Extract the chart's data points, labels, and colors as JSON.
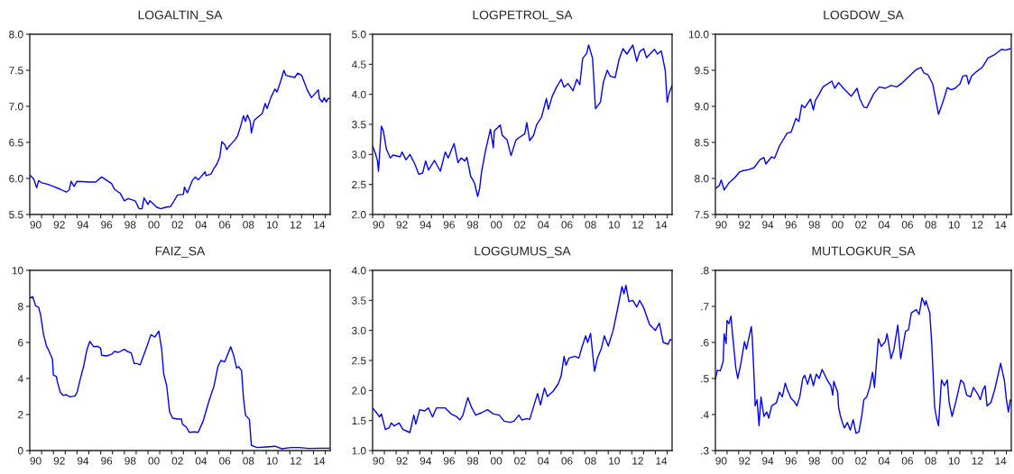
{
  "chart_data": [
    {
      "type": "line",
      "title": "LOGALTIN_SA",
      "xlim": [
        "1990-01",
        "2015-06"
      ],
      "ylim": [
        5.5,
        8.0
      ],
      "yticks": [
        {
          "value": 5.5,
          "label": "5.5"
        },
        {
          "value": 6,
          "label": "6.0"
        },
        {
          "value": 6.5,
          "label": "6.5"
        },
        {
          "value": 7,
          "label": "7.0"
        },
        {
          "value": 7.5,
          "label": "7.5"
        },
        {
          "value": 8,
          "label": "8.0"
        }
      ],
      "xticks": [
        {
          "value": "1990",
          "label": null
        },
        {
          "value": "1991",
          "label": null
        },
        {
          "value": "1992",
          "label": null
        },
        {
          "value": "1993",
          "label": null
        },
        {
          "value": "1994",
          "label": null
        },
        {
          "value": "1995",
          "label": null
        },
        {
          "value": "1996",
          "label": null
        },
        {
          "value": "1997",
          "label": null
        },
        {
          "value": "1998",
          "label": null
        },
        {
          "value": "1999",
          "label": null
        },
        {
          "value": "2000",
          "label": null
        },
        {
          "value": "2001",
          "label": null
        },
        {
          "value": "2002",
          "label": null
        },
        {
          "value": "2003",
          "label": null
        },
        {
          "value": "2004",
          "label": null
        },
        {
          "value": "2005",
          "label": null
        },
        {
          "value": "2006",
          "label": null
        },
        {
          "value": "2007",
          "label": null
        },
        {
          "value": "2008",
          "label": null
        },
        {
          "value": "2009",
          "label": null
        },
        {
          "value": "2010",
          "label": null
        },
        {
          "value": "2011",
          "label": null
        },
        {
          "value": "2012",
          "label": null
        },
        {
          "value": "2013",
          "label": null
        },
        {
          "value": "2014",
          "label": null
        },
        {
          "value": "2015",
          "label": null
        },
        {
          "value": "1990-07",
          "label": "90"
        },
        {
          "value": "1992-07",
          "label": "92"
        },
        {
          "value": "1994-07",
          "label": "94"
        },
        {
          "value": "1996-07",
          "label": "96"
        },
        {
          "value": "1998-07",
          "label": "98"
        },
        {
          "value": "2000-07",
          "label": "00"
        },
        {
          "value": "2002-07",
          "label": "02"
        },
        {
          "value": "2004-07",
          "label": "04"
        },
        {
          "value": "2006-07",
          "label": "06"
        },
        {
          "value": "2008-07",
          "label": "08"
        },
        {
          "value": "2010-07",
          "label": "10"
        },
        {
          "value": "2012-07",
          "label": "12"
        },
        {
          "value": "2014-07",
          "label": "14"
        }
      ],
      "x": [
        "1990-01",
        "1990-05",
        "1990-08",
        "1990-10",
        "1991-01",
        "1991-07",
        "1992-01",
        "1992-08",
        "1993-02",
        "1993-05",
        "1993-07",
        "1993-10",
        "1994-01",
        "1995-02",
        "1995-08",
        "1996-02",
        "1996-12",
        "1997-03",
        "1997-09",
        "1998-01",
        "1998-05",
        "1998-12",
        "1999-04",
        "1999-07",
        "1999-09",
        "2000-01",
        "2000-03",
        "2000-10",
        "2001-02",
        "2001-07",
        "2001-12",
        "2002-04",
        "2002-07",
        "2003-01",
        "2003-02",
        "2003-05",
        "2003-10",
        "2004-01",
        "2004-04",
        "2004-11",
        "2004-12",
        "2005-05",
        "2005-08",
        "2005-11",
        "2006-02",
        "2006-04",
        "2006-07",
        "2006-09",
        "2006-11",
        "2007-05",
        "2007-08",
        "2007-11",
        "2008-02",
        "2008-04",
        "2008-06",
        "2008-09",
        "2008-10",
        "2009-01",
        "2009-09",
        "2009-12",
        "2010-02",
        "2010-06",
        "2010-10",
        "2010-12",
        "2011-04",
        "2011-07",
        "2011-09",
        "2012-06",
        "2012-09",
        "2013-01",
        "2013-07",
        "2013-11",
        "2014-06",
        "2014-07",
        "2014-10",
        "2014-12",
        "2015-02",
        "2015-04",
        "2015-06"
      ],
      "series": [
        {
          "color": "#0000ff",
          "values": [
            6.05,
            5.99,
            5.87,
            5.97,
            5.94,
            5.92,
            5.89,
            5.85,
            5.81,
            5.84,
            5.96,
            5.89,
            5.96,
            5.95,
            5.95,
            6.02,
            5.93,
            5.85,
            5.79,
            5.69,
            5.72,
            5.69,
            5.58,
            5.58,
            5.73,
            5.64,
            5.69,
            5.6,
            5.58,
            5.6,
            5.61,
            5.7,
            5.77,
            5.78,
            5.88,
            5.8,
            5.97,
            6.02,
            5.98,
            6.09,
            6.04,
            6.06,
            6.14,
            6.2,
            6.3,
            6.51,
            6.47,
            6.4,
            6.44,
            6.53,
            6.59,
            6.72,
            6.87,
            6.79,
            6.88,
            6.78,
            6.63,
            6.81,
            6.9,
            7.04,
            6.97,
            7.13,
            7.24,
            7.2,
            7.36,
            7.5,
            7.43,
            7.4,
            7.46,
            7.43,
            7.22,
            7.12,
            7.23,
            7.11,
            7.06,
            7.12,
            7.06,
            7.11,
            7.11
          ]
        }
      ]
    },
    {
      "type": "line",
      "title": "LOGPETROL_SA",
      "xlim": [
        "1990-01",
        "2015-06"
      ],
      "ylim": [
        2.0,
        5.0
      ],
      "yticks": [
        {
          "value": 2,
          "label": "2.0"
        },
        {
          "value": 2.5,
          "label": "2.5"
        },
        {
          "value": 3,
          "label": "3.0"
        },
        {
          "value": 3.5,
          "label": "3.5"
        },
        {
          "value": 4,
          "label": "4.0"
        },
        {
          "value": 4.5,
          "label": "4.5"
        },
        {
          "value": 5,
          "label": "5.0"
        }
      ],
      "xticks": [
        {
          "value": "1990",
          "label": null
        },
        {
          "value": "1991",
          "label": null
        },
        {
          "value": "1992",
          "label": null
        },
        {
          "value": "1993",
          "label": null
        },
        {
          "value": "1994",
          "label": null
        },
        {
          "value": "1995",
          "label": null
        },
        {
          "value": "1996",
          "label": null
        },
        {
          "value": "1997",
          "label": null
        },
        {
          "value": "1998",
          "label": null
        },
        {
          "value": "1999",
          "label": null
        },
        {
          "value": "2000",
          "label": null
        },
        {
          "value": "2001",
          "label": null
        },
        {
          "value": "2002",
          "label": null
        },
        {
          "value": "2003",
          "label": null
        },
        {
          "value": "2004",
          "label": null
        },
        {
          "value": "2005",
          "label": null
        },
        {
          "value": "2006",
          "label": null
        },
        {
          "value": "2007",
          "label": null
        },
        {
          "value": "2008",
          "label": null
        },
        {
          "value": "2009",
          "label": null
        },
        {
          "value": "2010",
          "label": null
        },
        {
          "value": "2011",
          "label": null
        },
        {
          "value": "2012",
          "label": null
        },
        {
          "value": "2013",
          "label": null
        },
        {
          "value": "2014",
          "label": null
        },
        {
          "value": "2015",
          "label": null
        },
        {
          "value": "1990-07",
          "label": "90"
        },
        {
          "value": "1992-07",
          "label": "92"
        },
        {
          "value": "1994-07",
          "label": "94"
        },
        {
          "value": "1996-07",
          "label": "96"
        },
        {
          "value": "1998-07",
          "label": "98"
        },
        {
          "value": "2000-07",
          "label": "00"
        },
        {
          "value": "2002-07",
          "label": "02"
        },
        {
          "value": "2004-07",
          "label": "04"
        },
        {
          "value": "2006-07",
          "label": "06"
        },
        {
          "value": "2008-07",
          "label": "08"
        },
        {
          "value": "2010-07",
          "label": "10"
        },
        {
          "value": "2012-07",
          "label": "12"
        },
        {
          "value": "2014-07",
          "label": "14"
        }
      ],
      "x": [
        "1990-01",
        "1990-04",
        "1990-06",
        "1990-07",
        "1990-10",
        "1990-12",
        "1991-03",
        "1991-07",
        "1991-10",
        "1992-05",
        "1992-07",
        "1992-11",
        "1993-03",
        "1993-08",
        "1993-12",
        "1994-04",
        "1994-07",
        "1994-10",
        "1995-04",
        "1995-10",
        "1996-03",
        "1996-06",
        "1996-12",
        "1997-04",
        "1997-07",
        "1997-11",
        "1998-01",
        "1998-05",
        "1998-07",
        "1998-09",
        "1998-12",
        "1999-02",
        "1999-04",
        "1999-08",
        "2000-01",
        "2000-04",
        "2000-05",
        "2000-11",
        "2001-01",
        "2001-06",
        "2001-10",
        "2002-03",
        "2002-07",
        "2002-12",
        "2003-02",
        "2003-05",
        "2003-09",
        "2003-12",
        "2004-05",
        "2004-10",
        "2004-12",
        "2005-04",
        "2005-08",
        "2006-01",
        "2006-04",
        "2006-08",
        "2007-01",
        "2007-05",
        "2007-08",
        "2007-11",
        "2008-03",
        "2008-05",
        "2008-09",
        "2008-12",
        "2009-05",
        "2009-08",
        "2009-12",
        "2010-03",
        "2010-08",
        "2010-12",
        "2011-04",
        "2011-08",
        "2012-02",
        "2012-06",
        "2012-09",
        "2013-01",
        "2013-04",
        "2013-12",
        "2014-03",
        "2014-07",
        "2014-11",
        "2015-01",
        "2015-03",
        "2015-06"
      ],
      "series": [
        {
          "color": "#0000ff",
          "values": [
            3.14,
            3.01,
            2.89,
            2.72,
            3.47,
            3.39,
            3.09,
            2.94,
            2.99,
            2.96,
            3.04,
            2.91,
            3.0,
            2.84,
            2.67,
            2.69,
            2.89,
            2.74,
            2.9,
            2.72,
            3.04,
            2.94,
            3.18,
            2.86,
            2.94,
            2.89,
            2.95,
            2.63,
            2.58,
            2.51,
            2.3,
            2.43,
            2.71,
            3.06,
            3.42,
            3.11,
            3.39,
            3.49,
            3.32,
            3.24,
            2.98,
            3.24,
            3.29,
            3.34,
            3.53,
            3.23,
            3.32,
            3.49,
            3.62,
            3.93,
            3.75,
            3.97,
            4.11,
            4.25,
            4.12,
            4.18,
            4.06,
            4.25,
            4.16,
            4.6,
            4.68,
            4.82,
            4.6,
            3.76,
            3.87,
            4.2,
            4.4,
            4.3,
            4.28,
            4.58,
            4.76,
            4.67,
            4.82,
            4.55,
            4.71,
            4.76,
            4.61,
            4.75,
            4.67,
            4.72,
            4.4,
            3.87,
            4.02,
            4.15
          ]
        }
      ]
    },
    {
      "type": "line",
      "title": "LOGDOW_SA",
      "xlim": [
        "1990-01",
        "2015-06"
      ],
      "ylim": [
        7.5,
        10.0
      ],
      "yticks": [
        {
          "value": 7.5,
          "label": "7.5"
        },
        {
          "value": 8,
          "label": "8.0"
        },
        {
          "value": 8.5,
          "label": "8.5"
        },
        {
          "value": 9,
          "label": "9.0"
        },
        {
          "value": 9.5,
          "label": "9.5"
        },
        {
          "value": 10,
          "label": "10.0"
        }
      ],
      "xticks": [
        {
          "value": "1990",
          "label": null
        },
        {
          "value": "1991",
          "label": null
        },
        {
          "value": "1992",
          "label": null
        },
        {
          "value": "1993",
          "label": null
        },
        {
          "value": "1994",
          "label": null
        },
        {
          "value": "1995",
          "label": null
        },
        {
          "value": "1996",
          "label": null
        },
        {
          "value": "1997",
          "label": null
        },
        {
          "value": "1998",
          "label": null
        },
        {
          "value": "1999",
          "label": null
        },
        {
          "value": "2000",
          "label": null
        },
        {
          "value": "2001",
          "label": null
        },
        {
          "value": "2002",
          "label": null
        },
        {
          "value": "2003",
          "label": null
        },
        {
          "value": "2004",
          "label": null
        },
        {
          "value": "2005",
          "label": null
        },
        {
          "value": "2006",
          "label": null
        },
        {
          "value": "2007",
          "label": null
        },
        {
          "value": "2008",
          "label": null
        },
        {
          "value": "2009",
          "label": null
        },
        {
          "value": "2010",
          "label": null
        },
        {
          "value": "2011",
          "label": null
        },
        {
          "value": "2012",
          "label": null
        },
        {
          "value": "2013",
          "label": null
        },
        {
          "value": "2014",
          "label": null
        },
        {
          "value": "2015",
          "label": null
        },
        {
          "value": "1990-07",
          "label": "90"
        },
        {
          "value": "1992-07",
          "label": "92"
        },
        {
          "value": "1994-07",
          "label": "94"
        },
        {
          "value": "1996-07",
          "label": "96"
        },
        {
          "value": "1998-07",
          "label": "98"
        },
        {
          "value": "2000-07",
          "label": "00"
        },
        {
          "value": "2002-07",
          "label": "02"
        },
        {
          "value": "2004-07",
          "label": "04"
        },
        {
          "value": "2006-07",
          "label": "06"
        },
        {
          "value": "2008-07",
          "label": "08"
        },
        {
          "value": "2010-07",
          "label": "10"
        },
        {
          "value": "2012-07",
          "label": "12"
        },
        {
          "value": "2014-07",
          "label": "14"
        }
      ],
      "x": [
        "1990-01",
        "1990-05",
        "1990-07",
        "1990-10",
        "1991-03",
        "1991-09",
        "1991-12",
        "1992-02",
        "1992-06",
        "1992-11",
        "1993-05",
        "1993-11",
        "1994-03",
        "1994-05",
        "1994-11",
        "1995-02",
        "1995-07",
        "1996-03",
        "1996-07",
        "1996-12",
        "1997-03",
        "1997-06",
        "1997-09",
        "1998-03",
        "1998-06",
        "1998-08",
        "1998-12",
        "1999-04",
        "2000-01",
        "2000-04",
        "2000-08",
        "2001-01",
        "2001-04",
        "2001-09",
        "2002-03",
        "2002-06",
        "2002-10",
        "2003-01",
        "2003-08",
        "2004-02",
        "2004-08",
        "2005-02",
        "2005-08",
        "2006-02",
        "2006-12",
        "2007-04",
        "2007-09",
        "2007-12",
        "2008-04",
        "2008-09",
        "2008-11",
        "2009-03",
        "2009-08",
        "2009-12",
        "2010-04",
        "2010-08",
        "2011-01",
        "2011-04",
        "2011-08",
        "2011-10",
        "2012-01",
        "2012-06",
        "2012-12",
        "2013-06",
        "2013-12",
        "2014-08",
        "2014-12",
        "2015-05"
      ],
      "series": [
        {
          "color": "#0000ff",
          "values": [
            7.86,
            7.9,
            7.98,
            7.84,
            7.94,
            8.01,
            8.06,
            8.09,
            8.11,
            8.12,
            8.15,
            8.26,
            8.29,
            8.2,
            8.3,
            8.28,
            8.45,
            8.63,
            8.64,
            8.83,
            8.79,
            9.02,
            8.98,
            9.1,
            8.95,
            9.08,
            9.17,
            9.27,
            9.35,
            9.25,
            9.33,
            9.25,
            9.21,
            9.14,
            9.25,
            9.1,
            8.99,
            8.98,
            9.17,
            9.27,
            9.25,
            9.29,
            9.27,
            9.33,
            9.46,
            9.51,
            9.54,
            9.46,
            9.44,
            9.31,
            9.17,
            8.89,
            9.08,
            9.26,
            9.23,
            9.25,
            9.31,
            9.42,
            9.43,
            9.31,
            9.42,
            9.48,
            9.54,
            9.67,
            9.71,
            9.79,
            9.78,
            9.8
          ]
        }
      ]
    },
    {
      "type": "line",
      "title": "FAIZ_SA",
      "xlim": [
        "1990-01",
        "2015-06"
      ],
      "ylim": [
        0,
        10
      ],
      "yticks": [
        0,
        2,
        4,
        6,
        8,
        10
      ],
      "xticks": [
        {
          "value": "1990",
          "label": null
        },
        {
          "value": "1991",
          "label": null
        },
        {
          "value": "1992",
          "label": null
        },
        {
          "value": "1993",
          "label": null
        },
        {
          "value": "1994",
          "label": null
        },
        {
          "value": "1995",
          "label": null
        },
        {
          "value": "1996",
          "label": null
        },
        {
          "value": "1997",
          "label": null
        },
        {
          "value": "1998",
          "label": null
        },
        {
          "value": "1999",
          "label": null
        },
        {
          "value": "2000",
          "label": null
        },
        {
          "value": "2001",
          "label": null
        },
        {
          "value": "2002",
          "label": null
        },
        {
          "value": "2003",
          "label": null
        },
        {
          "value": "2004",
          "label": null
        },
        {
          "value": "2005",
          "label": null
        },
        {
          "value": "2006",
          "label": null
        },
        {
          "value": "2007",
          "label": null
        },
        {
          "value": "2008",
          "label": null
        },
        {
          "value": "2009",
          "label": null
        },
        {
          "value": "2010",
          "label": null
        },
        {
          "value": "2011",
          "label": null
        },
        {
          "value": "2012",
          "label": null
        },
        {
          "value": "2013",
          "label": null
        },
        {
          "value": "2014",
          "label": null
        },
        {
          "value": "2015",
          "label": null
        },
        {
          "value": "1990-07",
          "label": "90"
        },
        {
          "value": "1992-07",
          "label": "92"
        },
        {
          "value": "1994-07",
          "label": "94"
        },
        {
          "value": "1996-07",
          "label": "96"
        },
        {
          "value": "1998-07",
          "label": "98"
        },
        {
          "value": "2000-07",
          "label": "00"
        },
        {
          "value": "2002-07",
          "label": "02"
        },
        {
          "value": "2004-07",
          "label": "04"
        },
        {
          "value": "2006-07",
          "label": "06"
        },
        {
          "value": "2008-07",
          "label": "08"
        },
        {
          "value": "2010-07",
          "label": "10"
        },
        {
          "value": "2012-07",
          "label": "12"
        },
        {
          "value": "2014-07",
          "label": "14"
        }
      ],
      "x": [
        "1990-01",
        "1990-04",
        "1990-07",
        "1990-10",
        "1990-12",
        "1991-03",
        "1991-06",
        "1991-08",
        "1991-12",
        "1992-01",
        "1992-04",
        "1992-05",
        "1992-08",
        "1992-11",
        "1993-02",
        "1993-06",
        "1993-11",
        "1994-01",
        "1994-04",
        "1994-08",
        "1994-11",
        "1995-02",
        "1995-06",
        "1995-10",
        "1996-01",
        "1996-02",
        "1996-07",
        "1996-12",
        "1997-03",
        "1997-07",
        "1998-01",
        "1998-04",
        "1998-08",
        "1998-11",
        "1999-02",
        "1999-05",
        "1999-09",
        "1999-12",
        "2000-04",
        "2000-08",
        "2000-12",
        "2001-03",
        "2001-05",
        "2001-08",
        "2001-11",
        "2002-02",
        "2002-07",
        "2002-11",
        "2002-12",
        "2003-04",
        "2003-07",
        "2003-12",
        "2004-04",
        "2004-09",
        "2005-03",
        "2005-08",
        "2005-12",
        "2006-03",
        "2006-07",
        "2007-01",
        "2007-04",
        "2007-07",
        "2007-09",
        "2007-12",
        "2008-02",
        "2008-04",
        "2008-08",
        "2008-10",
        "2008-12",
        "2009-04",
        "2010-01",
        "2010-10",
        "2011-05",
        "2012-02",
        "2012-11",
        "2013-08",
        "2014-08",
        "2015-06"
      ],
      "series": [
        {
          "color": "#0000ff",
          "values": [
            8.48,
            8.54,
            8.03,
            7.95,
            7.53,
            6.43,
            5.79,
            5.59,
            5.08,
            4.19,
            4.11,
            3.82,
            3.23,
            3.06,
            3.1,
            2.98,
            3.03,
            3.23,
            3.91,
            4.75,
            5.59,
            6.06,
            5.76,
            5.79,
            5.67,
            5.29,
            5.25,
            5.34,
            5.5,
            5.45,
            5.62,
            5.5,
            5.42,
            4.83,
            4.83,
            4.75,
            5.34,
            5.79,
            6.43,
            6.3,
            6.63,
            5.59,
            4.24,
            3.6,
            2.14,
            1.8,
            1.75,
            1.75,
            1.46,
            1.3,
            1.01,
            1.04,
            1.01,
            1.63,
            2.76,
            3.57,
            4.66,
            5.0,
            4.92,
            5.76,
            5.29,
            4.58,
            4.66,
            4.44,
            2.9,
            1.97,
            1.72,
            0.29,
            0.24,
            0.17,
            0.2,
            0.24,
            0.1,
            0.17,
            0.17,
            0.12,
            0.13,
            0.13
          ]
        }
      ]
    },
    {
      "type": "line",
      "title": "LOGGUMUS_SA",
      "xlim": [
        "1990-01",
        "2015-06"
      ],
      "ylim": [
        1.0,
        4.0
      ],
      "yticks": [
        {
          "value": 1,
          "label": "1.0"
        },
        {
          "value": 1.5,
          "label": "1.5"
        },
        {
          "value": 2,
          "label": "2.0"
        },
        {
          "value": 2.5,
          "label": "2.5"
        },
        {
          "value": 3,
          "label": "3.0"
        },
        {
          "value": 3.5,
          "label": "3.5"
        },
        {
          "value": 4,
          "label": "4.0"
        }
      ],
      "xticks": [
        {
          "value": "1990",
          "label": null
        },
        {
          "value": "1991",
          "label": null
        },
        {
          "value": "1992",
          "label": null
        },
        {
          "value": "1993",
          "label": null
        },
        {
          "value": "1994",
          "label": null
        },
        {
          "value": "1995",
          "label": null
        },
        {
          "value": "1996",
          "label": null
        },
        {
          "value": "1997",
          "label": null
        },
        {
          "value": "1998",
          "label": null
        },
        {
          "value": "1999",
          "label": null
        },
        {
          "value": "2000",
          "label": null
        },
        {
          "value": "2001",
          "label": null
        },
        {
          "value": "2002",
          "label": null
        },
        {
          "value": "2003",
          "label": null
        },
        {
          "value": "2004",
          "label": null
        },
        {
          "value": "2005",
          "label": null
        },
        {
          "value": "2006",
          "label": null
        },
        {
          "value": "2007",
          "label": null
        },
        {
          "value": "2008",
          "label": null
        },
        {
          "value": "2009",
          "label": null
        },
        {
          "value": "2010",
          "label": null
        },
        {
          "value": "2011",
          "label": null
        },
        {
          "value": "2012",
          "label": null
        },
        {
          "value": "2013",
          "label": null
        },
        {
          "value": "2014",
          "label": null
        },
        {
          "value": "2015",
          "label": null
        },
        {
          "value": "1990-07",
          "label": "90"
        },
        {
          "value": "1992-07",
          "label": "92"
        },
        {
          "value": "1994-07",
          "label": "94"
        },
        {
          "value": "1996-07",
          "label": "96"
        },
        {
          "value": "1998-07",
          "label": "98"
        },
        {
          "value": "2000-07",
          "label": "00"
        },
        {
          "value": "2002-07",
          "label": "02"
        },
        {
          "value": "2004-07",
          "label": "04"
        },
        {
          "value": "2006-07",
          "label": "06"
        },
        {
          "value": "2008-07",
          "label": "08"
        },
        {
          "value": "2010-07",
          "label": "10"
        },
        {
          "value": "2012-07",
          "label": "12"
        },
        {
          "value": "2014-07",
          "label": "14"
        }
      ],
      "x": [
        "1990-01",
        "1990-05",
        "1990-08",
        "1990-10",
        "1991-02",
        "1991-06",
        "1991-08",
        "1991-11",
        "1992-04",
        "1992-08",
        "1992-11",
        "1993-03",
        "1993-07",
        "1993-09",
        "1994-01",
        "1994-06",
        "1994-10",
        "1995-02",
        "1995-06",
        "1996-03",
        "1996-09",
        "1997-03",
        "1997-06",
        "1997-09",
        "1998-02",
        "1998-06",
        "1998-10",
        "1999-04",
        "1999-10",
        "2000-04",
        "2000-10",
        "2001-03",
        "2001-09",
        "2002-01",
        "2002-06",
        "2002-09",
        "2003-02",
        "2003-05",
        "2003-08",
        "2004-01",
        "2004-04",
        "2004-08",
        "2004-11",
        "2005-05",
        "2005-10",
        "2006-01",
        "2006-04",
        "2006-06",
        "2006-09",
        "2007-03",
        "2007-07",
        "2007-10",
        "2008-02",
        "2008-04",
        "2008-07",
        "2008-11",
        "2009-02",
        "2009-06",
        "2009-09",
        "2010-01",
        "2010-06",
        "2010-11",
        "2011-03",
        "2011-05",
        "2011-07",
        "2011-10",
        "2012-02",
        "2012-06",
        "2012-09",
        "2013-01",
        "2013-07",
        "2014-01",
        "2014-05",
        "2014-09",
        "2015-02",
        "2015-04",
        "2015-05"
      ],
      "series": [
        {
          "color": "#0000ff",
          "values": [
            1.71,
            1.63,
            1.56,
            1.61,
            1.35,
            1.38,
            1.46,
            1.41,
            1.46,
            1.35,
            1.33,
            1.3,
            1.59,
            1.44,
            1.68,
            1.66,
            1.71,
            1.56,
            1.71,
            1.71,
            1.61,
            1.56,
            1.51,
            1.59,
            1.88,
            1.71,
            1.59,
            1.63,
            1.68,
            1.61,
            1.59,
            1.49,
            1.47,
            1.49,
            1.59,
            1.51,
            1.53,
            1.52,
            1.68,
            1.95,
            1.76,
            2.04,
            1.9,
            1.99,
            2.11,
            2.24,
            2.57,
            2.42,
            2.54,
            2.57,
            2.54,
            2.71,
            2.91,
            2.8,
            2.95,
            2.32,
            2.54,
            2.7,
            2.91,
            2.74,
            3.0,
            3.4,
            3.73,
            3.61,
            3.75,
            3.48,
            3.5,
            3.39,
            3.5,
            3.38,
            3.1,
            3.0,
            3.12,
            2.8,
            2.77,
            2.85,
            2.84
          ]
        }
      ]
    },
    {
      "type": "line",
      "title": "MUTLOGKUR_SA",
      "xlim": [
        "1990-01",
        "2015-06"
      ],
      "ylim": [
        0.3,
        0.8
      ],
      "yticks": [
        {
          "value": 0.3,
          "label": ".3"
        },
        {
          "value": 0.4,
          "label": ".4"
        },
        {
          "value": 0.5,
          "label": ".5"
        },
        {
          "value": 0.6,
          "label": ".6"
        },
        {
          "value": 0.7,
          "label": ".7"
        },
        {
          "value": 0.8,
          "label": ".8"
        }
      ],
      "xticks": [
        {
          "value": "1990",
          "label": null
        },
        {
          "value": "1991",
          "label": null
        },
        {
          "value": "1992",
          "label": null
        },
        {
          "value": "1993",
          "label": null
        },
        {
          "value": "1994",
          "label": null
        },
        {
          "value": "1995",
          "label": null
        },
        {
          "value": "1996",
          "label": null
        },
        {
          "value": "1997",
          "label": null
        },
        {
          "value": "1998",
          "label": null
        },
        {
          "value": "1999",
          "label": null
        },
        {
          "value": "2000",
          "label": null
        },
        {
          "value": "2001",
          "label": null
        },
        {
          "value": "2002",
          "label": null
        },
        {
          "value": "2003",
          "label": null
        },
        {
          "value": "2004",
          "label": null
        },
        {
          "value": "2005",
          "label": null
        },
        {
          "value": "2006",
          "label": null
        },
        {
          "value": "2007",
          "label": null
        },
        {
          "value": "2008",
          "label": null
        },
        {
          "value": "2009",
          "label": null
        },
        {
          "value": "2010",
          "label": null
        },
        {
          "value": "2011",
          "label": null
        },
        {
          "value": "2012",
          "label": null
        },
        {
          "value": "2013",
          "label": null
        },
        {
          "value": "2014",
          "label": null
        },
        {
          "value": "2015",
          "label": null
        },
        {
          "value": "1990-07",
          "label": "90"
        },
        {
          "value": "1992-07",
          "label": "92"
        },
        {
          "value": "1994-07",
          "label": "94"
        },
        {
          "value": "1996-07",
          "label": "96"
        },
        {
          "value": "1998-07",
          "label": "98"
        },
        {
          "value": "2000-07",
          "label": "00"
        },
        {
          "value": "2002-07",
          "label": "02"
        },
        {
          "value": "2004-07",
          "label": "04"
        },
        {
          "value": "2006-07",
          "label": "06"
        },
        {
          "value": "2008-07",
          "label": "08"
        },
        {
          "value": "2010-07",
          "label": "10"
        },
        {
          "value": "2012-07",
          "label": "12"
        },
        {
          "value": "2014-07",
          "label": "14"
        }
      ],
      "x": [
        "1990-01",
        "1990-03",
        "1990-06",
        "1990-09",
        "1990-10",
        "1990-12",
        "1991-01",
        "1991-03",
        "1991-05",
        "1991-07",
        "1991-10",
        "1991-12",
        "1992-03",
        "1992-07",
        "1992-09",
        "1993-02",
        "1993-03",
        "1993-05",
        "1993-06",
        "1993-08",
        "1993-10",
        "1993-12",
        "1994-03",
        "1994-06",
        "1994-08",
        "1994-11",
        "1995-04",
        "1995-07",
        "1995-10",
        "1996-01",
        "1996-03",
        "1996-07",
        "1996-10",
        "1997-01",
        "1997-04",
        "1997-07",
        "1997-09",
        "1997-12",
        "1998-03",
        "1998-06",
        "1998-09",
        "1998-12",
        "1999-03",
        "1999-09",
        "1999-12",
        "2000-02",
        "2000-03",
        "2000-07",
        "2000-08",
        "2000-10",
        "2001-01",
        "2001-02",
        "2001-05",
        "2001-08",
        "2001-11",
        "2002-02",
        "2002-05",
        "2002-08",
        "2002-10",
        "2003-01",
        "2003-04",
        "2003-07",
        "2003-09",
        "2004-01",
        "2004-04",
        "2004-08",
        "2004-10",
        "2005-02",
        "2005-05",
        "2005-09",
        "2005-12",
        "2006-05",
        "2006-08",
        "2006-11",
        "2007-04",
        "2007-07",
        "2007-10",
        "2008-01",
        "2008-02",
        "2008-06",
        "2008-08",
        "2008-11",
        "2009-01",
        "2009-03",
        "2009-06",
        "2009-09",
        "2009-12",
        "2010-02",
        "2010-05",
        "2010-09",
        "2011-02",
        "2011-05",
        "2011-08",
        "2011-12",
        "2012-03",
        "2012-08",
        "2012-10",
        "2013-01",
        "2013-03",
        "2013-05",
        "2013-09",
        "2014-01",
        "2014-05",
        "2014-07",
        "2014-11",
        "2015-01",
        "2015-03",
        "2015-05",
        "2015-06"
      ],
      "series": [
        {
          "color": "#0000ff",
          "values": [
            0.498,
            0.523,
            0.521,
            0.547,
            0.624,
            0.597,
            0.661,
            0.652,
            0.673,
            0.614,
            0.53,
            0.5,
            0.538,
            0.602,
            0.581,
            0.644,
            0.614,
            0.496,
            0.424,
            0.441,
            0.369,
            0.449,
            0.395,
            0.407,
            0.39,
            0.424,
            0.433,
            0.462,
            0.449,
            0.487,
            0.47,
            0.445,
            0.437,
            0.424,
            0.449,
            0.5,
            0.509,
            0.484,
            0.512,
            0.48,
            0.512,
            0.5,
            0.525,
            0.492,
            0.48,
            0.454,
            0.492,
            0.462,
            0.42,
            0.395,
            0.369,
            0.363,
            0.378,
            0.357,
            0.386,
            0.348,
            0.352,
            0.399,
            0.441,
            0.449,
            0.475,
            0.517,
            0.475,
            0.61,
            0.589,
            0.602,
            0.624,
            0.555,
            0.581,
            0.648,
            0.555,
            0.631,
            0.635,
            0.682,
            0.691,
            0.678,
            0.724,
            0.703,
            0.716,
            0.682,
            0.597,
            0.42,
            0.39,
            0.369,
            0.496,
            0.48,
            0.496,
            0.433,
            0.395,
            0.437,
            0.496,
            0.487,
            0.454,
            0.449,
            0.475,
            0.454,
            0.441,
            0.47,
            0.48,
            0.424,
            0.433,
            0.47,
            0.517,
            0.542,
            0.492,
            0.441,
            0.407,
            0.441,
            0.439
          ]
        }
      ]
    }
  ]
}
